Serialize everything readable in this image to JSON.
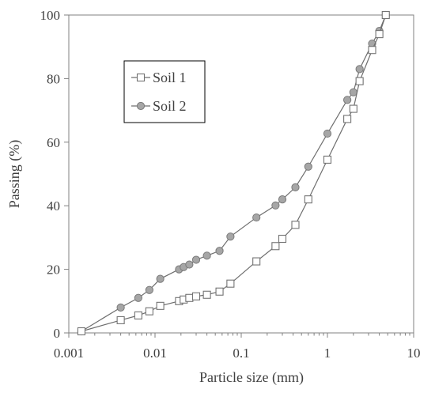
{
  "chart_data": {
    "type": "scatter",
    "xlabel": "Particle size (mm)",
    "ylabel": "Passing  (%)",
    "x_scale": "log",
    "xlim": [
      0.001,
      10
    ],
    "ylim": [
      0,
      100
    ],
    "x_ticks": [
      0.001,
      0.01,
      0.1,
      1,
      10
    ],
    "x_tick_labels": [
      "0.001",
      "0.01",
      "0.1",
      "1",
      "10"
    ],
    "y_ticks": [
      0,
      20,
      40,
      60,
      80,
      100
    ],
    "y_tick_labels": [
      "0",
      "20",
      "40",
      "60",
      "80",
      "100"
    ],
    "grid": false,
    "legend_position": "upper-left",
    "series": [
      {
        "name": "Soil 1",
        "marker": "square-open",
        "color": "#7f7f7f",
        "points": [
          [
            0.0014,
            0.5
          ],
          [
            0.004,
            4
          ],
          [
            0.0064,
            5.5
          ],
          [
            0.0086,
            6.8
          ],
          [
            0.0115,
            8.5
          ],
          [
            0.019,
            10
          ],
          [
            0.0215,
            10.5
          ],
          [
            0.025,
            11
          ],
          [
            0.03,
            11.5
          ],
          [
            0.04,
            12
          ],
          [
            0.056,
            13
          ],
          [
            0.075,
            15.5
          ],
          [
            0.15,
            22.5
          ],
          [
            0.25,
            27.3
          ],
          [
            0.3,
            29.6
          ],
          [
            0.425,
            34
          ],
          [
            0.6,
            42
          ],
          [
            1.0,
            54.5
          ],
          [
            1.7,
            67.3
          ],
          [
            2.0,
            70.5
          ],
          [
            2.36,
            79.2
          ],
          [
            3.3,
            89
          ],
          [
            4.0,
            94
          ],
          [
            4.75,
            100
          ]
        ]
      },
      {
        "name": "Soil 2",
        "marker": "circle-filled",
        "color": "#a6a6a6",
        "points": [
          [
            0.0014,
            0.5
          ],
          [
            0.004,
            8
          ],
          [
            0.0064,
            11
          ],
          [
            0.0086,
            13.5
          ],
          [
            0.0115,
            17
          ],
          [
            0.019,
            20
          ],
          [
            0.0215,
            20.7
          ],
          [
            0.025,
            21.5
          ],
          [
            0.03,
            23
          ],
          [
            0.04,
            24.3
          ],
          [
            0.056,
            25.8
          ],
          [
            0.075,
            30.3
          ],
          [
            0.15,
            36.3
          ],
          [
            0.25,
            40.1
          ],
          [
            0.3,
            42
          ],
          [
            0.425,
            45.8
          ],
          [
            0.6,
            52.3
          ],
          [
            1.0,
            62.7
          ],
          [
            1.7,
            73.3
          ],
          [
            2.0,
            75.7
          ],
          [
            2.36,
            83
          ],
          [
            3.3,
            91
          ],
          [
            4.0,
            95
          ],
          [
            4.75,
            100
          ]
        ]
      }
    ]
  }
}
